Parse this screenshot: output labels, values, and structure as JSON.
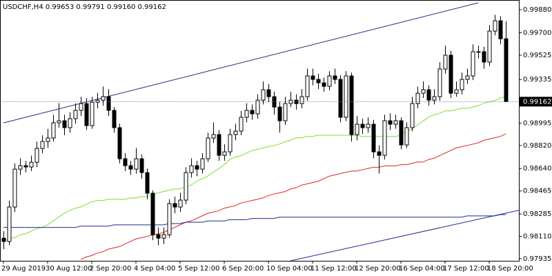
{
  "chart_data": {
    "type": "candlestick",
    "symbol": "USDCHF,H4",
    "digits": 5,
    "categories": [
      "29 Aug 2019",
      null,
      null,
      null,
      null,
      null,
      null,
      null,
      "30 Aug 12:00",
      null,
      null,
      null,
      null,
      null,
      null,
      null,
      "2 Sep 20:00",
      null,
      null,
      null,
      null,
      null,
      null,
      null,
      "4 Sep 04:00",
      null,
      null,
      null,
      null,
      null,
      null,
      null,
      "5 Sep 12:00",
      null,
      null,
      null,
      null,
      null,
      null,
      null,
      "6 Sep 20:00",
      null,
      null,
      null,
      null,
      null,
      null,
      null,
      "10 Sep 04:00",
      null,
      null,
      null,
      null,
      null,
      null,
      null,
      "11 Sep 12:00",
      null,
      null,
      null,
      null,
      null,
      null,
      null,
      "12 Sep 20:00",
      null,
      null,
      null,
      null,
      null,
      null,
      null,
      "16 Sep 04:00",
      null,
      null,
      null,
      null,
      null,
      null,
      null,
      "17 Sep 12:00",
      null,
      null,
      null,
      null,
      null,
      null,
      null,
      "18 Sep 20:00",
      null,
      null,
      null
    ],
    "open": [
      0.98096,
      0.9807,
      0.98339,
      0.98635,
      0.98662,
      0.98652,
      0.98689,
      0.98797,
      0.98851,
      0.98878,
      0.98997,
      0.99013,
      0.98959,
      0.99029,
      0.99094,
      0.99147,
      0.98975,
      0.99158,
      0.99174,
      0.99201,
      0.99094,
      0.98959,
      0.98716,
      0.98662,
      0.98635,
      0.98716,
      0.98608,
      0.98447,
      0.98123,
      0.98096,
      0.98123,
      0.98366,
      0.98339,
      0.98393,
      0.98608,
      0.98662,
      0.98635,
      0.98716,
      0.98878,
      0.98905,
      0.98743,
      0.9877,
      0.98905,
      0.98932,
      0.9904,
      0.99094,
      0.99067,
      0.99174,
      0.99255,
      0.99201,
      0.9912,
      0.99013,
      0.99147,
      0.99174,
      0.99147,
      0.99201,
      0.99363,
      0.99336,
      0.99309,
      0.99282,
      0.99363,
      0.99336,
      0.9904,
      0.99363,
      0.98905,
      0.98986,
      0.98959,
      0.98986,
      0.9877,
      0.98743,
      0.99013,
      0.98986,
      0.99013,
      0.98824,
      0.98959,
      0.99147,
      0.99228,
      0.99255,
      0.99174,
      0.99201,
      0.99417,
      0.99525,
      0.99228,
      0.99255,
      0.99336,
      0.99363,
      0.99552,
      0.99552,
      0.99471,
      0.99713,
      0.99794,
      0.99653
    ],
    "high": [
      0.9815,
      0.9839,
      0.9868,
      0.9872,
      0.987,
      0.9874,
      0.9885,
      0.989,
      0.9895,
      0.9906,
      0.9915,
      0.9906,
      0.9908,
      0.9915,
      0.992,
      0.9919,
      0.992,
      0.9923,
      0.9928,
      0.9926,
      0.9912,
      0.9899,
      0.9876,
      0.987,
      0.988,
      0.9875,
      0.9864,
      0.9847,
      0.9818,
      0.9818,
      0.984,
      0.9842,
      0.9845,
      0.9865,
      0.9872,
      0.987,
      0.9876,
      0.9892,
      0.99,
      0.9894,
      0.9883,
      0.9895,
      0.9899,
      0.9909,
      0.9915,
      0.9914,
      0.9922,
      0.9932,
      0.993,
      0.9924,
      0.9916,
      0.992,
      0.9924,
      0.9922,
      0.9926,
      0.9942,
      0.9942,
      0.9938,
      0.9935,
      0.994,
      0.9942,
      0.9937,
      0.994,
      0.9939,
      0.9905,
      0.9903,
      0.9904,
      0.9902,
      0.9882,
      0.9906,
      0.9907,
      0.9906,
      0.9904,
      0.99,
      0.992,
      0.9928,
      0.9932,
      0.9929,
      0.9926,
      0.9947,
      0.996,
      0.9956,
      0.9932,
      0.9939,
      0.9942,
      0.9961,
      0.996,
      0.9959,
      0.9976,
      0.9984,
      0.9983,
      0.99791
    ],
    "low": [
      0.9801,
      0.9804,
      0.983,
      0.9859,
      0.9861,
      0.9862,
      0.9865,
      0.9876,
      0.988,
      0.9885,
      0.9896,
      0.989,
      0.9892,
      0.9899,
      0.9905,
      0.9894,
      0.9895,
      0.9911,
      0.9913,
      0.9905,
      0.9892,
      0.9868,
      0.9862,
      0.9859,
      0.986,
      0.9856,
      0.984,
      0.9808,
      0.9804,
      0.9805,
      0.981,
      0.9829,
      0.983,
      0.9836,
      0.9857,
      0.9858,
      0.986,
      0.9869,
      0.9884,
      0.987,
      0.987,
      0.9874,
      0.9886,
      0.989,
      0.99,
      0.9902,
      0.9903,
      0.9914,
      0.9916,
      0.9906,
      0.9892,
      0.9898,
      0.9912,
      0.991,
      0.9911,
      0.9917,
      0.9929,
      0.9926,
      0.9924,
      0.9925,
      0.993,
      0.99,
      0.9901,
      0.9885,
      0.9886,
      0.9891,
      0.9892,
      0.9872,
      0.986,
      0.9871,
      0.9894,
      0.9895,
      0.9879,
      0.988,
      0.9893,
      0.9911,
      0.9919,
      0.9913,
      0.9914,
      0.9917,
      0.9938,
      0.9919,
      0.992,
      0.9922,
      0.993,
      0.9933,
      0.995,
      0.9942,
      0.9944,
      0.9968,
      0.9961,
      0.9916
    ],
    "close": [
      0.9807,
      0.98339,
      0.98635,
      0.98662,
      0.98652,
      0.98689,
      0.98797,
      0.98851,
      0.98878,
      0.98997,
      0.99013,
      0.98959,
      0.99029,
      0.99094,
      0.99147,
      0.98975,
      0.99158,
      0.99174,
      0.99201,
      0.99094,
      0.98959,
      0.98716,
      0.98662,
      0.98635,
      0.98716,
      0.98608,
      0.98447,
      0.98123,
      0.98096,
      0.98123,
      0.98366,
      0.98339,
      0.98393,
      0.98608,
      0.98662,
      0.98635,
      0.98716,
      0.98878,
      0.98905,
      0.98743,
      0.9877,
      0.98905,
      0.98932,
      0.9904,
      0.99094,
      0.99067,
      0.99174,
      0.99255,
      0.99201,
      0.9912,
      0.99013,
      0.99147,
      0.99174,
      0.99147,
      0.99201,
      0.99363,
      0.99336,
      0.99309,
      0.99282,
      0.99363,
      0.99336,
      0.9904,
      0.99363,
      0.98905,
      0.98986,
      0.98959,
      0.98986,
      0.9877,
      0.98743,
      0.99013,
      0.98986,
      0.99013,
      0.98824,
      0.98959,
      0.99147,
      0.99228,
      0.99255,
      0.99174,
      0.99201,
      0.99417,
      0.99525,
      0.99228,
      0.99255,
      0.99336,
      0.99363,
      0.99552,
      0.99552,
      0.99471,
      0.99713,
      0.99794,
      0.99653,
      0.99162
    ],
    "up_color": "#ffffff",
    "down_color": "#000000",
    "ylim": [
      0.97919,
      0.99956
    ],
    "yticks": [
      {
        "value": 0.9988,
        "label": "0.99880"
      },
      {
        "value": 0.997,
        "label": "0.99700"
      },
      {
        "value": 0.99525,
        "label": "0.99525"
      },
      {
        "value": 0.99335,
        "label": "0.99335"
      },
      {
        "value": 0.98995,
        "label": "0.98995"
      },
      {
        "value": 0.9882,
        "label": "0.98820"
      },
      {
        "value": 0.9864,
        "label": "0.98640"
      },
      {
        "value": 0.98465,
        "label": "0.98465"
      },
      {
        "value": 0.98285,
        "label": "0.98285"
      },
      {
        "value": 0.9811,
        "label": "0.98110"
      },
      {
        "value": 0.97935,
        "label": "0.97935"
      }
    ],
    "series": [
      {
        "color": "#7fdc2c",
        "values": [
          0.9807,
          0.9809,
          0.981,
          0.9812,
          0.9813,
          0.9815,
          0.9817,
          0.9818,
          0.982,
          0.9823,
          0.9826,
          0.9829,
          0.9831,
          0.9833,
          0.9834,
          0.9836,
          0.9838,
          0.9839,
          0.9839,
          0.984,
          0.984,
          0.984,
          0.984,
          0.9841,
          0.9841,
          0.9842,
          0.9842,
          0.9844,
          0.9845,
          0.9846,
          0.9847,
          0.9848,
          0.9848,
          0.985,
          0.9851,
          0.9854,
          0.9856,
          0.9858,
          0.9861,
          0.9864,
          0.9867,
          0.9871,
          0.9873,
          0.9874,
          0.9876,
          0.9878,
          0.9879,
          0.988,
          0.9881,
          0.9882,
          0.9883,
          0.9885,
          0.9886,
          0.9888,
          0.9888,
          0.9889,
          0.9889,
          0.989,
          0.989,
          0.989,
          0.989,
          0.989,
          0.989,
          0.989,
          0.989,
          0.9889,
          0.9889,
          0.9889,
          0.9889,
          0.9889,
          0.9889,
          0.9889,
          0.989,
          0.9893,
          0.9895,
          0.9898,
          0.9901,
          0.9904,
          0.9906,
          0.9907,
          0.9909,
          0.9909,
          0.991,
          0.9911,
          0.9911,
          0.9912,
          0.9913,
          0.9915,
          0.9916,
          0.9917,
          0.9919,
          0.992
        ]
      },
      {
        "color": "#e0231b",
        "values": [
          null,
          null,
          null,
          null,
          null,
          null,
          null,
          null,
          null,
          null,
          null,
          null,
          null,
          null,
          0.9793,
          0.9795,
          0.9796,
          0.9798,
          0.9799,
          0.9801,
          0.9802,
          0.9803,
          0.9805,
          0.9807,
          0.9809,
          0.981,
          0.9811,
          0.9812,
          0.9813,
          0.9814,
          0.9816,
          0.9818,
          0.982,
          0.9822,
          0.9823,
          0.9825,
          0.9827,
          0.9829,
          0.983,
          0.9831,
          0.9833,
          0.9834,
          0.9835,
          0.9837,
          0.9838,
          0.9839,
          0.984,
          0.9841,
          0.9843,
          0.9844,
          0.9845,
          0.9846,
          0.9848,
          0.9849,
          0.9851,
          0.9852,
          0.9853,
          0.9854,
          0.9856,
          0.9858,
          0.9859,
          0.986,
          0.9861,
          0.9862,
          0.9862,
          0.9863,
          0.9864,
          0.9865,
          0.9865,
          0.9866,
          0.9866,
          0.9866,
          0.9867,
          0.9867,
          0.9868,
          0.9869,
          0.9869,
          0.9871,
          0.9872,
          0.9874,
          0.9876,
          0.9878,
          0.988,
          0.9881,
          0.9882,
          0.9883,
          0.9884,
          0.9886,
          0.9887,
          0.9888,
          0.9889,
          0.9891
        ]
      },
      {
        "color": "#1c2a8e",
        "values": [
          0.9818,
          0.9818,
          0.9818,
          0.9818,
          0.9818,
          0.9818,
          0.9818,
          0.9818,
          0.9818,
          0.9818,
          0.9818,
          0.9818,
          0.9818,
          0.9818,
          0.9819,
          0.9819,
          0.9819,
          0.9819,
          0.9819,
          0.9819,
          0.982,
          0.982,
          0.982,
          0.982,
          0.982,
          0.982,
          0.982,
          0.982,
          0.982,
          0.982,
          0.9821,
          0.9821,
          0.9821,
          0.9822,
          0.9822,
          0.9822,
          0.9822,
          0.9823,
          0.9823,
          0.9823,
          0.9823,
          0.9824,
          0.9824,
          0.9824,
          0.9824,
          0.9825,
          0.9825,
          0.9825,
          0.9825,
          0.9825,
          0.9826,
          0.9826,
          0.9826,
          0.9826,
          0.9826,
          0.9826,
          0.9826,
          0.9826,
          0.9826,
          0.9826,
          0.9826,
          0.9826,
          0.9826,
          0.9826,
          0.9826,
          0.9826,
          0.9826,
          0.9826,
          0.9826,
          0.9826,
          0.9826,
          0.9826,
          0.9826,
          0.9826,
          0.9826,
          0.9826,
          0.9826,
          0.9826,
          0.9826,
          0.9826,
          0.9826,
          0.9826,
          0.9826,
          0.9826,
          0.9827,
          0.9827,
          0.9827,
          0.9827,
          0.9827,
          0.9827,
          0.9828,
          0.9828
        ]
      }
    ],
    "trendlines": [
      {
        "color": "#1c2a8e",
        "points": [
          [
            0,
            0.98996
          ],
          [
            86,
            0.99934
          ]
        ]
      },
      {
        "color": "#1c2a8e",
        "points": [
          [
            52,
            0.97919
          ],
          [
            91,
            0.98291
          ]
        ],
        "ray_right": true
      }
    ],
    "price_line": true
  }
}
